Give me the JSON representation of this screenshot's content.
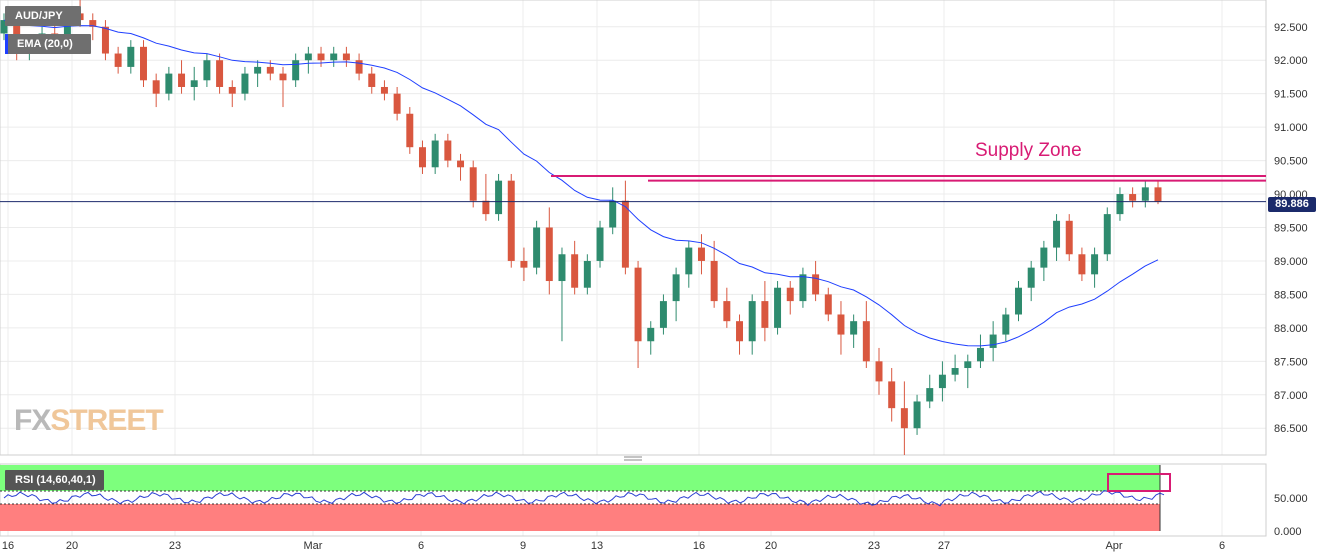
{
  "header": {
    "symbol": "AUD/JPY",
    "ema_label": "EMA (20,0)"
  },
  "logo": {
    "part1": "FX",
    "part2": "STREET"
  },
  "annotation": {
    "supply_zone": "Supply Zone"
  },
  "price_badge": "89.886",
  "rsi": {
    "label": "RSI (14,60,40,1)",
    "y_ticks": [
      "50.000",
      "0.000"
    ]
  },
  "colors": {
    "up": "#2e8b6e",
    "down": "#d9573f",
    "ema": "#1f3fff",
    "supply": "#d81b74",
    "rsi_line": "#2b3fd1",
    "rsi_top": "#7dff7d",
    "rsi_bottom": "#ff7f7f"
  },
  "chart_data": {
    "type": "candlestick",
    "title": "AUD/JPY",
    "ylim": [
      86.1,
      92.9
    ],
    "y_ticks": [
      86.5,
      87.0,
      87.5,
      88.0,
      88.5,
      89.0,
      89.5,
      90.0,
      90.5,
      91.0,
      91.5,
      92.0,
      92.5
    ],
    "x_tick_labels": [
      "16",
      "20",
      "23",
      "Mar",
      "6",
      "9",
      "13",
      "16",
      "20",
      "23",
      "27",
      "Apr",
      "6"
    ],
    "last_price": 89.886,
    "supply_zone": [
      90.2,
      90.27
    ],
    "ema_period": 20,
    "ohlc": [
      [
        92.4,
        92.7,
        92.3,
        92.6
      ],
      [
        92.6,
        92.8,
        92.0,
        92.1
      ],
      [
        92.1,
        92.3,
        92.0,
        92.2
      ],
      [
        92.2,
        92.5,
        92.1,
        92.4
      ],
      [
        92.4,
        92.6,
        92.2,
        92.3
      ],
      [
        92.3,
        92.8,
        92.2,
        92.7
      ],
      [
        92.7,
        92.9,
        92.5,
        92.6
      ],
      [
        92.6,
        92.7,
        92.3,
        92.5
      ],
      [
        92.5,
        92.6,
        92.0,
        92.1
      ],
      [
        92.1,
        92.2,
        91.8,
        91.9
      ],
      [
        91.9,
        92.3,
        91.8,
        92.2
      ],
      [
        92.2,
        92.3,
        91.6,
        91.7
      ],
      [
        91.7,
        91.8,
        91.3,
        91.5
      ],
      [
        91.5,
        91.9,
        91.4,
        91.8
      ],
      [
        91.8,
        92.0,
        91.5,
        91.6
      ],
      [
        91.6,
        91.9,
        91.4,
        91.7
      ],
      [
        91.7,
        92.1,
        91.6,
        92.0
      ],
      [
        92.0,
        92.1,
        91.5,
        91.6
      ],
      [
        91.6,
        91.7,
        91.3,
        91.5
      ],
      [
        91.5,
        91.9,
        91.4,
        91.8
      ],
      [
        91.8,
        92.0,
        91.6,
        91.9
      ],
      [
        91.9,
        92.0,
        91.7,
        91.8
      ],
      [
        91.8,
        91.9,
        91.3,
        91.7
      ],
      [
        91.7,
        92.1,
        91.6,
        92.0
      ],
      [
        92.0,
        92.2,
        91.8,
        92.1
      ],
      [
        92.1,
        92.2,
        91.9,
        92.0
      ],
      [
        92.0,
        92.2,
        91.9,
        92.1
      ],
      [
        92.1,
        92.2,
        91.9,
        92.0
      ],
      [
        92.0,
        92.1,
        91.7,
        91.8
      ],
      [
        91.8,
        91.9,
        91.5,
        91.6
      ],
      [
        91.6,
        91.7,
        91.4,
        91.5
      ],
      [
        91.5,
        91.6,
        91.1,
        91.2
      ],
      [
        91.2,
        91.3,
        90.6,
        90.7
      ],
      [
        90.7,
        90.8,
        90.3,
        90.4
      ],
      [
        90.4,
        90.9,
        90.3,
        90.8
      ],
      [
        90.8,
        90.9,
        90.4,
        90.5
      ],
      [
        90.5,
        90.6,
        90.2,
        90.4
      ],
      [
        90.4,
        90.5,
        89.8,
        89.9
      ],
      [
        89.9,
        90.3,
        89.6,
        89.7
      ],
      [
        89.7,
        90.3,
        89.6,
        90.2
      ],
      [
        90.2,
        90.3,
        88.9,
        89.0
      ],
      [
        89.0,
        89.2,
        88.7,
        88.9
      ],
      [
        88.9,
        89.6,
        88.8,
        89.5
      ],
      [
        89.5,
        89.8,
        88.5,
        88.7
      ],
      [
        88.7,
        89.2,
        87.8,
        89.1
      ],
      [
        89.1,
        89.3,
        88.5,
        88.6
      ],
      [
        88.6,
        89.1,
        88.5,
        89.0
      ],
      [
        89.0,
        89.6,
        88.9,
        89.5
      ],
      [
        89.5,
        90.1,
        89.4,
        89.9
      ],
      [
        89.9,
        90.2,
        88.8,
        88.9
      ],
      [
        88.9,
        89.0,
        87.4,
        87.8
      ],
      [
        87.8,
        88.1,
        87.6,
        88.0
      ],
      [
        88.0,
        88.5,
        87.9,
        88.4
      ],
      [
        88.4,
        88.9,
        88.1,
        88.8
      ],
      [
        88.8,
        89.3,
        88.6,
        89.2
      ],
      [
        89.2,
        89.4,
        88.8,
        89.0
      ],
      [
        89.0,
        89.3,
        88.3,
        88.4
      ],
      [
        88.4,
        88.6,
        88.0,
        88.1
      ],
      [
        88.1,
        88.2,
        87.6,
        87.8
      ],
      [
        87.8,
        88.5,
        87.6,
        88.4
      ],
      [
        88.4,
        88.7,
        87.8,
        88.0
      ],
      [
        88.0,
        88.7,
        87.9,
        88.6
      ],
      [
        88.6,
        88.7,
        88.2,
        88.4
      ],
      [
        88.4,
        88.9,
        88.3,
        88.8
      ],
      [
        88.8,
        89.0,
        88.4,
        88.5
      ],
      [
        88.5,
        88.6,
        88.1,
        88.2
      ],
      [
        88.2,
        88.4,
        87.6,
        87.9
      ],
      [
        87.9,
        88.2,
        87.7,
        88.1
      ],
      [
        88.1,
        88.4,
        87.4,
        87.5
      ],
      [
        87.5,
        87.7,
        87.0,
        87.2
      ],
      [
        87.2,
        87.4,
        86.6,
        86.8
      ],
      [
        86.8,
        87.2,
        86.1,
        86.5
      ],
      [
        86.5,
        87.0,
        86.4,
        86.9
      ],
      [
        86.9,
        87.3,
        86.8,
        87.1
      ],
      [
        87.1,
        87.5,
        86.9,
        87.3
      ],
      [
        87.3,
        87.6,
        87.2,
        87.4
      ],
      [
        87.4,
        87.6,
        87.1,
        87.5
      ],
      [
        87.5,
        87.9,
        87.4,
        87.7
      ],
      [
        87.7,
        88.1,
        87.5,
        87.9
      ],
      [
        87.9,
        88.3,
        87.8,
        88.2
      ],
      [
        88.2,
        88.7,
        88.1,
        88.6
      ],
      [
        88.6,
        89.0,
        88.4,
        88.9
      ],
      [
        88.9,
        89.3,
        88.7,
        89.2
      ],
      [
        89.2,
        89.7,
        89.0,
        89.6
      ],
      [
        89.6,
        89.7,
        89.0,
        89.1
      ],
      [
        89.1,
        89.2,
        88.7,
        88.8
      ],
      [
        88.8,
        89.2,
        88.6,
        89.1
      ],
      [
        89.1,
        89.8,
        89.0,
        89.7
      ],
      [
        89.7,
        90.1,
        89.6,
        90.0
      ],
      [
        90.0,
        90.1,
        89.8,
        89.9
      ],
      [
        89.9,
        90.2,
        89.8,
        90.1
      ],
      [
        90.1,
        90.2,
        89.85,
        89.886
      ]
    ]
  }
}
